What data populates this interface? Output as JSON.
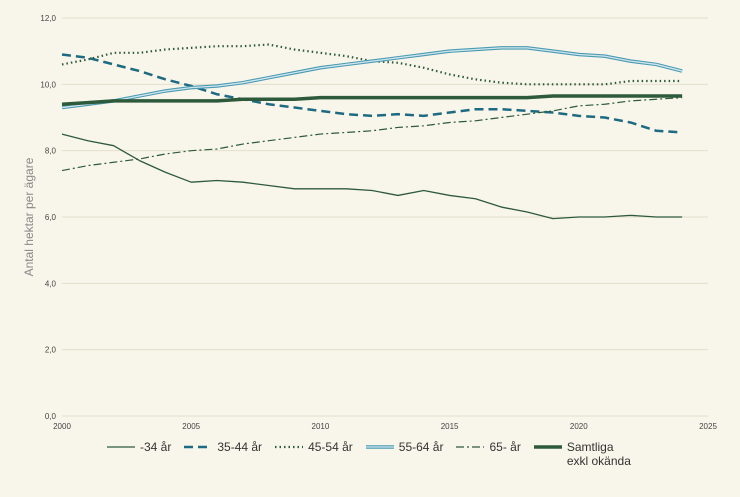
{
  "chart_data": {
    "type": "line",
    "ylabel": "Antal hektar per ägare",
    "xlim": [
      2000,
      2025
    ],
    "ylim": [
      0,
      12
    ],
    "x_ticks": [
      "2000",
      "2005",
      "2010",
      "2015",
      "2020",
      "2025"
    ],
    "y_ticks": [
      "0,0",
      "2,0",
      "4,0",
      "6,0",
      "8,0",
      "10,0",
      "12,0"
    ],
    "grid": "horizontal",
    "legend_position": "bottom",
    "x": [
      2000,
      2001,
      2002,
      2003,
      2004,
      2005,
      2006,
      2007,
      2008,
      2009,
      2010,
      2011,
      2012,
      2013,
      2014,
      2015,
      2016,
      2017,
      2018,
      2019,
      2020,
      2021,
      2022,
      2023,
      2024
    ],
    "series": [
      {
        "name": "-34 år",
        "style": "solid",
        "color": "#2e5a3c",
        "values": [
          8.5,
          8.3,
          8.15,
          7.7,
          7.35,
          7.05,
          7.1,
          7.05,
          6.95,
          6.85,
          6.85,
          6.85,
          6.8,
          6.65,
          6.8,
          6.65,
          6.55,
          6.3,
          6.15,
          5.95,
          6.0,
          6.0,
          6.05,
          6.0,
          6.0
        ]
      },
      {
        "name": "35-44 år",
        "style": "dashed",
        "color": "#1d6a82",
        "values": [
          10.9,
          10.8,
          10.6,
          10.4,
          10.15,
          9.95,
          9.7,
          9.55,
          9.4,
          9.3,
          9.2,
          9.1,
          9.05,
          9.1,
          9.05,
          9.15,
          9.25,
          9.25,
          9.2,
          9.15,
          9.05,
          9.0,
          8.85,
          8.6,
          8.55
        ]
      },
      {
        "name": "45-54 år",
        "style": "dotted",
        "color": "#2e5a3c",
        "values": [
          10.6,
          10.75,
          10.95,
          10.95,
          11.05,
          11.1,
          11.15,
          11.15,
          11.2,
          11.05,
          10.95,
          10.85,
          10.7,
          10.65,
          10.5,
          10.3,
          10.15,
          10.05,
          10.0,
          10.0,
          10.0,
          10.0,
          10.1,
          10.1,
          10.1
        ]
      },
      {
        "name": "55-64 år",
        "style": "double",
        "color": "#4a9ab2",
        "values": [
          9.3,
          9.4,
          9.5,
          9.65,
          9.8,
          9.9,
          9.95,
          10.05,
          10.2,
          10.35,
          10.5,
          10.6,
          10.7,
          10.8,
          10.9,
          11.0,
          11.05,
          11.1,
          11.1,
          11.0,
          10.9,
          10.85,
          10.7,
          10.6,
          10.4
        ]
      },
      {
        "name": "65- år",
        "style": "dashdot",
        "color": "#2e5a3c",
        "values": [
          7.4,
          7.55,
          7.65,
          7.75,
          7.9,
          8.0,
          8.05,
          8.2,
          8.3,
          8.4,
          8.5,
          8.55,
          8.6,
          8.7,
          8.75,
          8.85,
          8.9,
          9.0,
          9.1,
          9.2,
          9.35,
          9.4,
          9.5,
          9.55,
          9.6
        ]
      },
      {
        "name": "Samtliga exkl okända",
        "style": "thick",
        "color": "#2e5a3c",
        "values": [
          9.4,
          9.45,
          9.5,
          9.5,
          9.5,
          9.5,
          9.5,
          9.55,
          9.55,
          9.55,
          9.6,
          9.6,
          9.6,
          9.6,
          9.6,
          9.6,
          9.6,
          9.6,
          9.6,
          9.65,
          9.65,
          9.65,
          9.65,
          9.65,
          9.65
        ]
      }
    ]
  }
}
